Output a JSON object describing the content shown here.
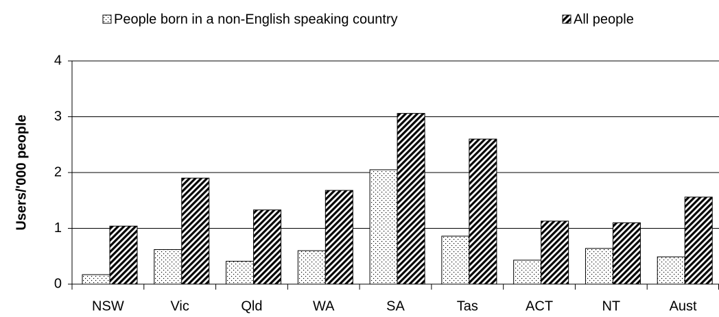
{
  "chart_data": {
    "type": "bar",
    "y_label": "Users/'000 people",
    "categories": [
      "NSW",
      "Vic",
      "Qld",
      "WA",
      "SA",
      "Tas",
      "ACT",
      "NT",
      "Aust"
    ],
    "series": [
      {
        "name": "People born in a non-English speaking country",
        "color": "#000000",
        "pattern": "dots",
        "values": [
          0.17,
          0.62,
          0.41,
          0.6,
          2.05,
          0.86,
          0.43,
          0.64,
          0.49
        ]
      },
      {
        "name": "All people",
        "color": "#000000",
        "pattern": "hatch",
        "values": [
          1.04,
          1.9,
          1.33,
          1.68,
          3.06,
          2.6,
          1.13,
          1.1,
          1.56
        ]
      }
    ],
    "ylim": [
      0,
      4
    ],
    "yticks": [
      0,
      1,
      2,
      3,
      4
    ],
    "grid": true,
    "legend": "top"
  }
}
